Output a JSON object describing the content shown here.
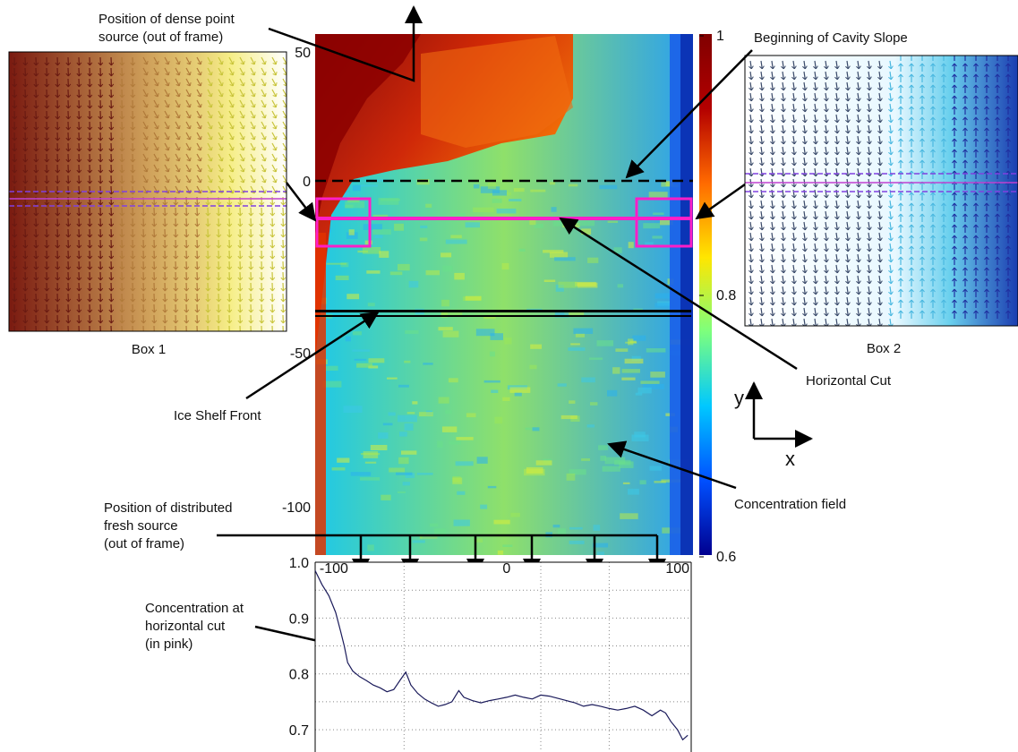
{
  "annotations": {
    "dense_source": [
      "Position of dense point",
      "source (out of frame)"
    ],
    "cavity_slope": "Beginning of Cavity Slope",
    "box1": "Box 1",
    "box2": "Box 2",
    "horizontal_cut": "Horizontal Cut",
    "ice_shelf_front": "Ice Shelf Front",
    "concentration_field": "Concentration field",
    "fresh_source": [
      "Position of distributed",
      "fresh source",
      "(out of frame)"
    ],
    "conc_at_cut": [
      "Concentration at",
      "horizontal cut",
      "(in pink)"
    ]
  },
  "axes_arrows": {
    "y": "y",
    "x": "x"
  },
  "field_map": {
    "y_ticks": [
      "50",
      "0",
      "-50",
      "-100"
    ],
    "x_ticks": [
      "-100",
      "0",
      "100"
    ],
    "colorbar_ticks": [
      "1",
      "0.8",
      "0.6"
    ],
    "colormap": [
      "#00008f",
      "#0050ff",
      "#00c8ff",
      "#7dff7d",
      "#ffe600",
      "#ff6a00",
      "#b30000",
      "#800000"
    ]
  },
  "chart_data": {
    "type": "line",
    "yticks": [
      "1.0",
      "0.9",
      "0.8",
      "0.7"
    ],
    "ylim": [
      0.66,
      1.0
    ],
    "xlim": [
      -112,
      108
    ],
    "points": [
      [
        -112,
        0.985
      ],
      [
        -108,
        0.96
      ],
      [
        -104,
        0.94
      ],
      [
        -100,
        0.91
      ],
      [
        -97,
        0.875
      ],
      [
        -95,
        0.85
      ],
      [
        -93,
        0.82
      ],
      [
        -90,
        0.805
      ],
      [
        -86,
        0.795
      ],
      [
        -82,
        0.788
      ],
      [
        -78,
        0.78
      ],
      [
        -74,
        0.775
      ],
      [
        -70,
        0.768
      ],
      [
        -66,
        0.772
      ],
      [
        -62,
        0.79
      ],
      [
        -59,
        0.803
      ],
      [
        -56,
        0.78
      ],
      [
        -52,
        0.765
      ],
      [
        -48,
        0.755
      ],
      [
        -44,
        0.748
      ],
      [
        -40,
        0.742
      ],
      [
        -36,
        0.745
      ],
      [
        -32,
        0.75
      ],
      [
        -28,
        0.77
      ],
      [
        -25,
        0.758
      ],
      [
        -20,
        0.752
      ],
      [
        -15,
        0.748
      ],
      [
        -10,
        0.752
      ],
      [
        -5,
        0.755
      ],
      [
        0,
        0.758
      ],
      [
        5,
        0.762
      ],
      [
        10,
        0.758
      ],
      [
        15,
        0.755
      ],
      [
        20,
        0.762
      ],
      [
        25,
        0.76
      ],
      [
        30,
        0.756
      ],
      [
        35,
        0.752
      ],
      [
        40,
        0.748
      ],
      [
        45,
        0.742
      ],
      [
        50,
        0.745
      ],
      [
        55,
        0.742
      ],
      [
        60,
        0.738
      ],
      [
        65,
        0.735
      ],
      [
        70,
        0.738
      ],
      [
        75,
        0.742
      ],
      [
        80,
        0.735
      ],
      [
        85,
        0.725
      ],
      [
        90,
        0.735
      ],
      [
        93,
        0.73
      ],
      [
        96,
        0.715
      ],
      [
        100,
        0.7
      ],
      [
        103,
        0.682
      ],
      [
        106,
        0.69
      ]
    ]
  }
}
